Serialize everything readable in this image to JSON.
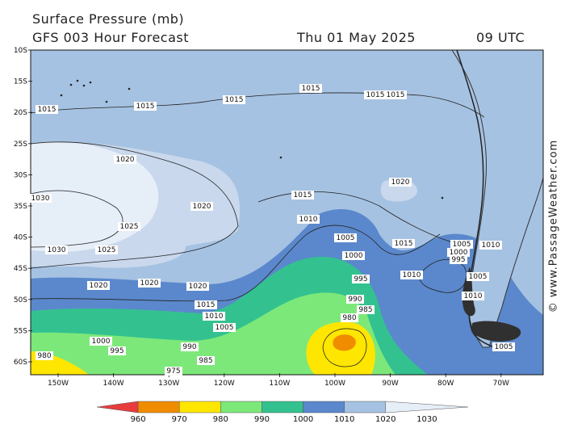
{
  "header": {
    "title": "Surface Pressure (mb)",
    "subtitle": "GFS 003 Hour Forecast",
    "date": "Thu 01 May 2025",
    "time": "09 UTC"
  },
  "credit": "© www.PassageWeather.com",
  "map": {
    "lat_labels": [
      "10S",
      "15S",
      "20S",
      "25S",
      "30S",
      "35S",
      "40S",
      "45S",
      "50S",
      "55S",
      "60S"
    ],
    "lon_labels": [
      "150W",
      "140W",
      "130W",
      "120W",
      "110W",
      "100W",
      "90W",
      "80W",
      "70W"
    ],
    "isobar_labels": [
      {
        "text": "1015"
      },
      {
        "text": "1015"
      },
      {
        "text": "1015"
      },
      {
        "text": "1015"
      },
      {
        "text": "1015"
      },
      {
        "text": "1015"
      },
      {
        "text": "1020"
      },
      {
        "text": "1025"
      },
      {
        "text": "1030"
      },
      {
        "text": "1030"
      },
      {
        "text": "1025"
      },
      {
        "text": "1020"
      },
      {
        "text": "1020"
      },
      {
        "text": "1020"
      },
      {
        "text": "1020"
      },
      {
        "text": "1015"
      },
      {
        "text": "1010"
      },
      {
        "text": "1005"
      },
      {
        "text": "1000"
      },
      {
        "text": "995"
      },
      {
        "text": "990"
      },
      {
        "text": "985"
      },
      {
        "text": "980"
      },
      {
        "text": "975"
      },
      {
        "text": "1015"
      },
      {
        "text": "1010"
      },
      {
        "text": "1005"
      },
      {
        "text": "1000"
      },
      {
        "text": "995"
      },
      {
        "text": "990"
      },
      {
        "text": "985"
      },
      {
        "text": "980"
      },
      {
        "text": "1005"
      },
      {
        "text": "1000"
      },
      {
        "text": "995"
      },
      {
        "text": "1010"
      },
      {
        "text": "1015"
      },
      {
        "text": "1010"
      },
      {
        "text": "1020"
      },
      {
        "text": "1005"
      },
      {
        "text": "1010"
      },
      {
        "text": "1005"
      }
    ]
  },
  "legend": {
    "ticks": [
      "960",
      "970",
      "980",
      "990",
      "1000",
      "1010",
      "1020",
      "1030"
    ],
    "colors": [
      "#e83c3c",
      "#f08c00",
      "#ffe600",
      "#7de87a",
      "#33c28f",
      "#5b88cc",
      "#a6c2e2",
      "#e6eef8"
    ]
  },
  "colors": {
    "ocean_base": "#a6c2e2",
    "high_1020": "#c9d8ec",
    "high_1030": "#e6eef8",
    "band_1010": "#5b88cc",
    "band_1000": "#33c28f",
    "band_990": "#7de87a",
    "band_980": "#ffe600",
    "band_970": "#f08c00",
    "land": "#404040"
  }
}
